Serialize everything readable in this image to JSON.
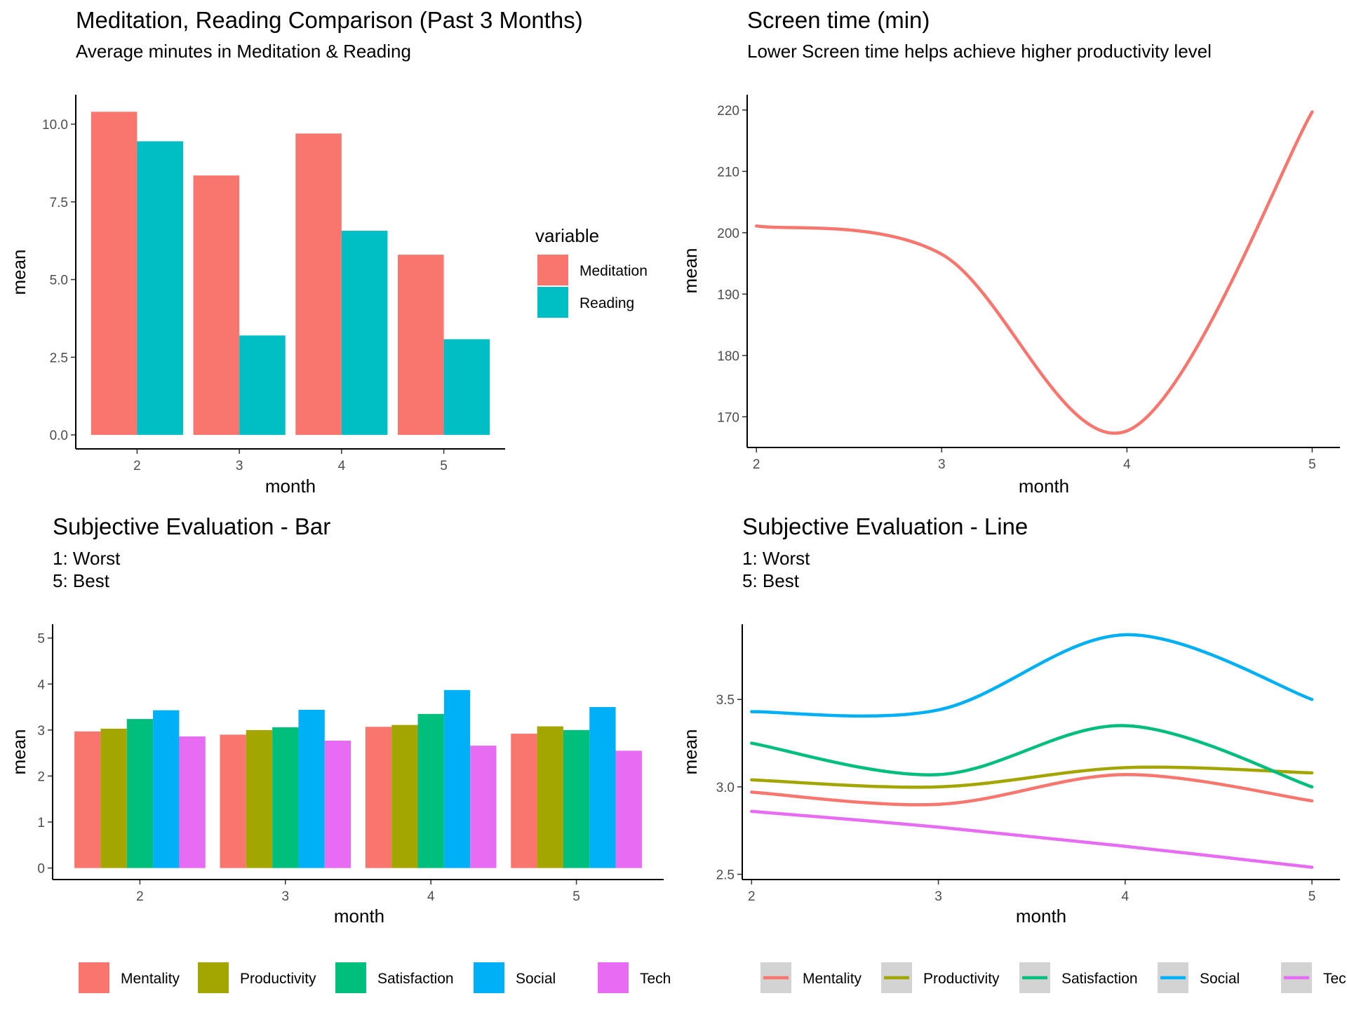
{
  "chart_data": [
    {
      "id": "meditation_reading",
      "type": "bar",
      "title": "Meditation, Reading Comparison (Past 3 Months)",
      "subtitle": "Average minutes in Meditation & Reading",
      "xlabel": "month",
      "ylabel": "mean",
      "categories": [
        "2",
        "3",
        "4",
        "5"
      ],
      "series": [
        {
          "name": "Meditation",
          "color": "#F8766D",
          "values": [
            10.4,
            8.35,
            9.7,
            5.8
          ]
        },
        {
          "name": "Reading",
          "color": "#00BFC4",
          "values": [
            9.45,
            3.2,
            6.57,
            3.08
          ]
        }
      ],
      "ylim": [
        -0.45,
        10.95
      ],
      "yticks": [
        0,
        2.5,
        5,
        7.5,
        10
      ],
      "ytick_labels": [
        "0.0",
        "2.5",
        "5.0",
        "7.5",
        "10.0"
      ],
      "legend_title": "variable",
      "legend_position": "right",
      "grid": false
    },
    {
      "id": "screen_time",
      "type": "line",
      "title": "Screen time (min)",
      "subtitle": "Lower Screen time helps achieve higher productivity level",
      "xlabel": "month",
      "ylabel": "mean",
      "x": [
        2,
        3,
        4,
        5
      ],
      "series": [
        {
          "name": "Screen time",
          "color": "#F8766D",
          "values": [
            201.1,
            196.5,
            167.7,
            219.7
          ]
        }
      ],
      "xlim": [
        1.95,
        5.15
      ],
      "ylim": [
        165.0,
        222.5
      ],
      "xticks": [
        "2",
        "3",
        "4",
        "5"
      ],
      "yticks": [
        170,
        180,
        190,
        200,
        210,
        220
      ],
      "grid": false
    },
    {
      "id": "subjective_bar",
      "type": "bar",
      "title": "Subjective Evaluation - Bar",
      "subtitle_lines": [
        "1: Worst",
        "5: Best"
      ],
      "xlabel": "month",
      "ylabel": "mean",
      "categories": [
        "2",
        "3",
        "4",
        "5"
      ],
      "series": [
        {
          "name": "Mentality",
          "color": "#F8766D",
          "values": [
            2.97,
            2.9,
            3.07,
            2.92
          ]
        },
        {
          "name": "Productivity",
          "color": "#A3A500",
          "values": [
            3.03,
            3.0,
            3.11,
            3.08
          ]
        },
        {
          "name": "Satisfaction",
          "color": "#00BF7D",
          "values": [
            3.24,
            3.06,
            3.35,
            3.0
          ]
        },
        {
          "name": "Social",
          "color": "#00B0F6",
          "values": [
            3.43,
            3.44,
            3.87,
            3.5
          ]
        },
        {
          "name": "Tech",
          "color": "#E76BF3",
          "values": [
            2.86,
            2.77,
            2.66,
            2.55
          ]
        }
      ],
      "ylim": [
        -0.25,
        5.3
      ],
      "yticks": [
        0,
        1,
        2,
        3,
        4,
        5
      ],
      "legend_position": "bottom",
      "grid": false
    },
    {
      "id": "subjective_line",
      "type": "line",
      "title": "Subjective Evaluation - Line",
      "subtitle_lines": [
        "1: Worst",
        "5: Best"
      ],
      "xlabel": "month",
      "ylabel": "mean",
      "x": [
        2,
        3,
        4,
        5
      ],
      "series": [
        {
          "name": "Mentality",
          "color": "#F8766D",
          "values": [
            2.97,
            2.9,
            3.07,
            2.92
          ]
        },
        {
          "name": "Productivity",
          "color": "#A3A500",
          "values": [
            3.04,
            3.0,
            3.11,
            3.08
          ]
        },
        {
          "name": "Satisfaction",
          "color": "#00BF7D",
          "values": [
            3.25,
            3.07,
            3.35,
            3.0
          ]
        },
        {
          "name": "Social",
          "color": "#00B0F6",
          "values": [
            3.43,
            3.44,
            3.87,
            3.5
          ]
        },
        {
          "name": "Tech",
          "color": "#E76BF3",
          "values": [
            2.86,
            2.77,
            2.66,
            2.54
          ]
        }
      ],
      "xlim": [
        1.95,
        5.15
      ],
      "ylim": [
        2.47,
        3.93
      ],
      "xticks": [
        "2",
        "3",
        "4",
        "5"
      ],
      "yticks": [
        2.5,
        3.0,
        3.5
      ],
      "ytick_labels": [
        "2.5",
        "3.0",
        "3.5"
      ],
      "legend_position": "bottom",
      "grid": false
    }
  ]
}
